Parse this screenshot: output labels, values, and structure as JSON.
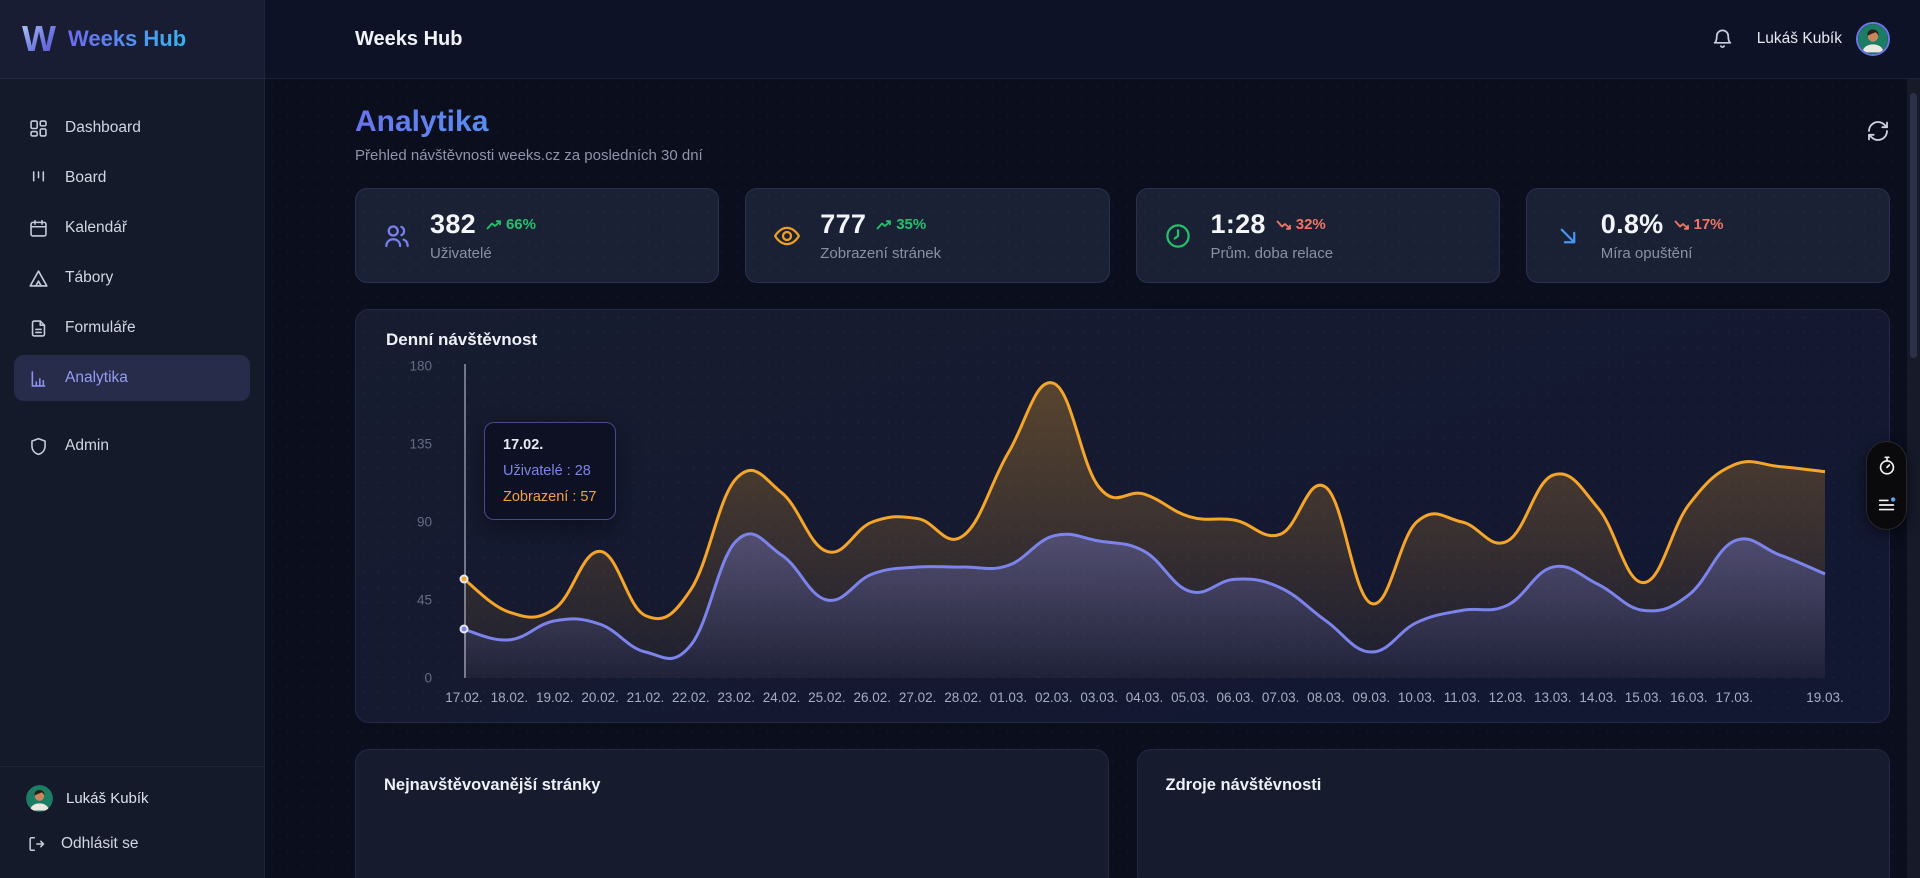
{
  "brand": {
    "name": "Weeks Hub"
  },
  "header": {
    "title": "Weeks Hub",
    "user_name": "Lukáš Kubík"
  },
  "sidebar": {
    "items": [
      {
        "id": "dashboard",
        "icon": "grid",
        "label": "Dashboard"
      },
      {
        "id": "board",
        "icon": "kanban",
        "label": "Board"
      },
      {
        "id": "kalendar",
        "icon": "calendar",
        "label": "Kalendář"
      },
      {
        "id": "tabory",
        "icon": "tent",
        "label": "Tábory"
      },
      {
        "id": "formulare",
        "icon": "file",
        "label": "Formuláře"
      },
      {
        "id": "analytika",
        "icon": "chart",
        "label": "Analytika"
      },
      {
        "id": "admin",
        "icon": "shield",
        "label": "Admin",
        "gap": true
      }
    ],
    "active_index": 5,
    "user_name": "Lukáš Kubík",
    "logout_label": "Odhlásit se"
  },
  "page": {
    "title": "Analytika",
    "subtitle": "Přehled návštěvnosti weeks.cz za posledních 30 dní"
  },
  "stats": [
    {
      "icon": "users",
      "icon_color": "#7a81ee",
      "value": "382",
      "trend": "66%",
      "direction": "up",
      "label": "Uživatelé"
    },
    {
      "icon": "eye",
      "icon_color": "#f0a020",
      "value": "777",
      "trend": "35%",
      "direction": "up",
      "label": "Zobrazení stránek"
    },
    {
      "icon": "clock",
      "icon_color": "#25c06a",
      "value": "1:28",
      "trend": "32%",
      "direction": "down",
      "label": "Prům. doba relace"
    },
    {
      "icon": "arrow-dr",
      "icon_color": "#4596f0",
      "value": "0.8%",
      "trend": "17%",
      "direction": "down",
      "label": "Míra opuštění"
    }
  ],
  "chart_data": {
    "type": "line",
    "title": "Denní návštěvnost",
    "x": [
      "17.02.",
      "18.02.",
      "19.02.",
      "20.02.",
      "21.02.",
      "22.02.",
      "23.02.",
      "24.02.",
      "25.02.",
      "26.02.",
      "27.02.",
      "28.02.",
      "01.03.",
      "02.03.",
      "03.03.",
      "04.03.",
      "05.03.",
      "06.03.",
      "07.03.",
      "08.03.",
      "09.03.",
      "10.03.",
      "11.03.",
      "12.03.",
      "13.03.",
      "14.03.",
      "15.03.",
      "16.03.",
      "17.03.",
      "18.03.",
      "19.03."
    ],
    "hidden_x_indices": [
      29
    ],
    "yticks": [
      0,
      45,
      90,
      135,
      180
    ],
    "ylim": [
      0,
      180
    ],
    "grid": false,
    "legend": false,
    "series": [
      {
        "name": "Uživatelé",
        "color": "#7c83eb",
        "values": [
          28,
          22,
          33,
          31,
          15,
          19,
          79,
          71,
          45,
          60,
          64,
          64,
          65,
          82,
          79,
          73,
          50,
          57,
          52,
          33,
          15,
          32,
          39,
          42,
          64,
          54,
          39,
          48,
          79,
          71,
          60
        ]
      },
      {
        "name": "Zobrazení",
        "color": "#f5a62a",
        "values": [
          57,
          38,
          40,
          73,
          36,
          51,
          115,
          107,
          73,
          90,
          92,
          82,
          130,
          170,
          110,
          106,
          93,
          91,
          83,
          110,
          43,
          90,
          90,
          79,
          117,
          98,
          55,
          100,
          123,
          122,
          119
        ]
      }
    ],
    "tooltip": {
      "point_index": 0,
      "date": "17.02.",
      "lines": [
        {
          "text": "Uživatelé : 28",
          "color": "#7c83eb"
        },
        {
          "text": "Zobrazení : 57",
          "color": "#f0a13f"
        }
      ]
    }
  },
  "bottom_cards": [
    {
      "title": "Nejnavštěvovanější stránky"
    },
    {
      "title": "Zdroje návštěvnosti"
    }
  ],
  "colors": {
    "accent": "#7c83eb",
    "orange": "#f5a62a",
    "green": "#25c06a",
    "red": "#ef7565",
    "blue": "#4596f0",
    "heading_from": "#6a74f0",
    "heading_to": "#3ab6f0"
  }
}
